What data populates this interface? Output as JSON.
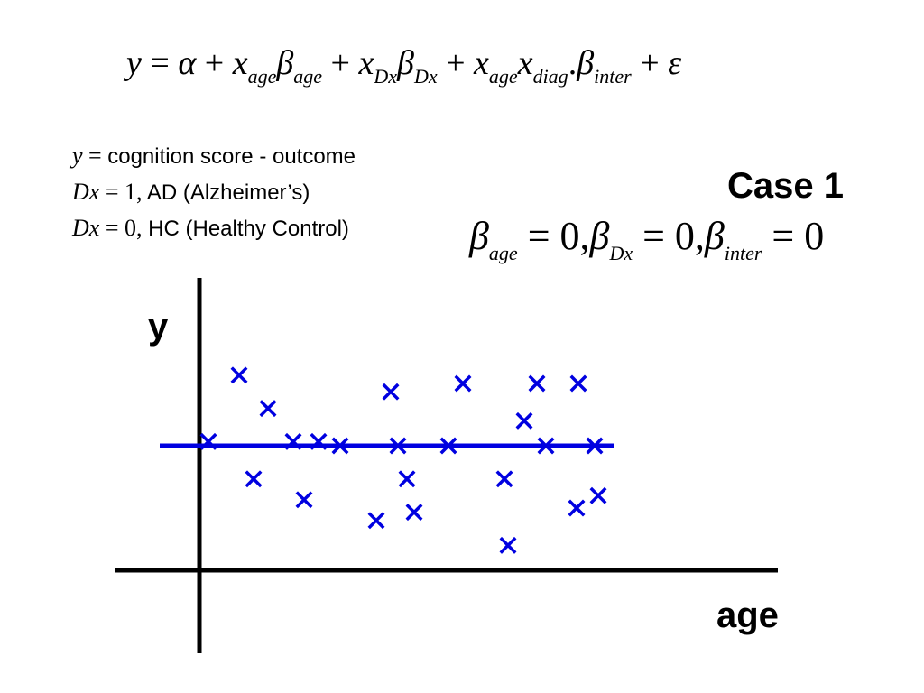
{
  "equation": {
    "y": "y",
    "eq": " = ",
    "alpha": "α",
    "plus": " + ",
    "x": "x",
    "beta": "β",
    "sub_age": "age",
    "sub_dx": "Dx",
    "sub_diag": "diag",
    "dot": ".",
    "sub_inter": "inter",
    "epsilon": "ε"
  },
  "legend": [
    {
      "symbol": "y",
      "rest": " = ",
      "desc": "cognition score - outcome"
    },
    {
      "symbol": "Dx",
      "rest": " = 1,",
      "desc": " AD (Alzheimer’s)"
    },
    {
      "symbol": "Dx",
      "rest": " = 0,",
      "desc": " HC (Healthy Control)"
    }
  ],
  "case_title": "Case 1",
  "beta_line": {
    "beta": "β",
    "sub_age": "age",
    "sub_dx": "Dx",
    "sub_inter": "inter",
    "eq0": " = 0,",
    "eq0_last": " = 0"
  },
  "colors": {
    "points": "#0000e0",
    "axis": "#000000"
  },
  "chart_data": {
    "type": "scatter",
    "xlabel": "age",
    "ylabel": "y",
    "grid": false,
    "x": [
      0.25,
      1.1,
      1.5,
      1.9,
      2.6,
      2.9,
      3.3,
      3.9,
      4.9,
      5.3,
      5.5,
      5.75,
      5.95,
      6.9,
      7.3,
      8.45,
      8.55,
      9.0,
      9.35,
      9.6,
      10.45,
      10.5,
      10.95,
      11.05
    ],
    "y": [
      3.1,
      4.7,
      2.2,
      3.9,
      3.1,
      1.7,
      3.1,
      3.0,
      1.2,
      4.3,
      3.0,
      2.2,
      1.4,
      3.0,
      4.5,
      2.2,
      0.6,
      3.6,
      4.5,
      3.0,
      1.5,
      4.5,
      3.0,
      1.8
    ],
    "series": [
      {
        "name": "",
        "type": "hline",
        "value": 3.0,
        "x_from": -1.1,
        "x_to": 11.5
      }
    ],
    "xlim": [
      -1.7,
      12.0
    ],
    "ylim": [
      -0.5,
      6.8
    ]
  }
}
